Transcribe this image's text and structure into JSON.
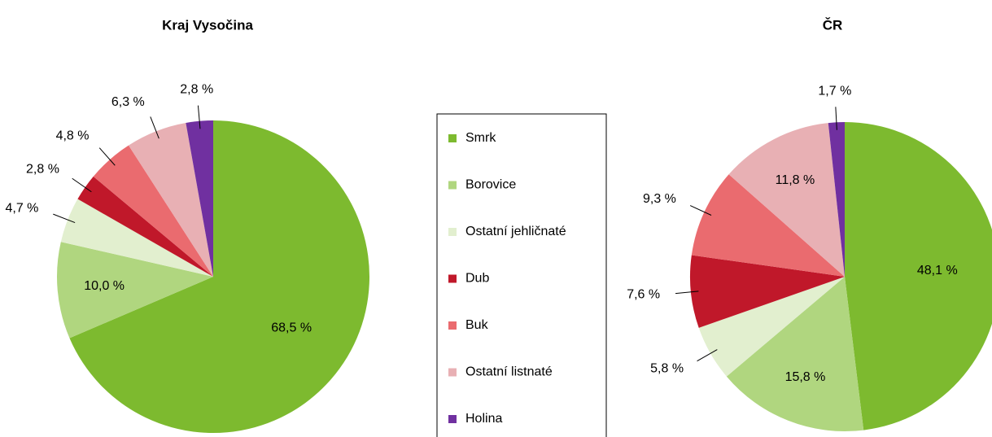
{
  "chart_data": [
    {
      "type": "pie",
      "title": "Kraj Vysočina",
      "categories": [
        "Smrk",
        "Borovice",
        "Ostatní jehličnaté",
        "Dub",
        "Buk",
        "Ostatní listnaté",
        "Holina"
      ],
      "colors": [
        "#7dba2f",
        "#b0d67f",
        "#e2efcf",
        "#c0182a",
        "#ea6b6f",
        "#e8b0b4",
        "#7030a0"
      ],
      "values": [
        68.5,
        10.0,
        4.7,
        2.8,
        4.8,
        6.3,
        2.8
      ],
      "value_labels": [
        "68,5 %",
        "10,0 %",
        "4,7 %",
        "2,8 %",
        "4,8 %",
        "6,3 %",
        "2,8 %"
      ]
    },
    {
      "type": "pie",
      "title": "ČR",
      "values": [
        48.1,
        15.8,
        5.8,
        7.6,
        9.3,
        11.8,
        1.7
      ],
      "value_labels": [
        "48,1 %",
        "15,8 %",
        "5,8 %",
        "7,6 %",
        "9,3 %",
        "11,8 %",
        "1,7 %"
      ]
    }
  ]
}
